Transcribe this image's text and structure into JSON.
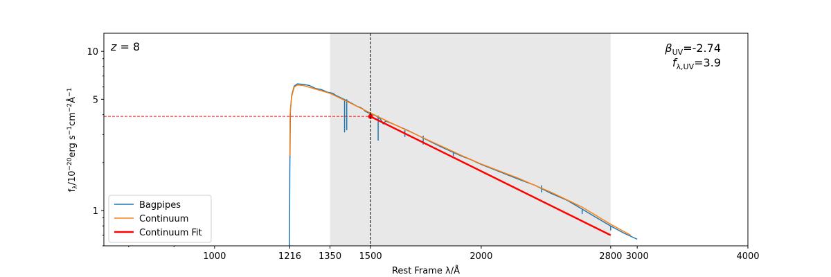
{
  "chart_data": {
    "type": "line",
    "title": "",
    "xlabel": "Rest Frame λ/Å",
    "ylabel": "f_λ/10^-20 erg s^-1 cm^-2 Å^-1",
    "x_scale": "log",
    "y_scale": "log",
    "xlim": [
      750,
      4000
    ],
    "ylim": [
      0.6,
      13
    ],
    "x_ticks": [
      1000,
      1216,
      1350,
      1500,
      2000,
      2800,
      3000,
      4000
    ],
    "y_ticks": [
      1,
      5,
      10
    ],
    "grid": false,
    "shaded_region": [
      1350,
      2800
    ],
    "vline": 1500,
    "hline": 3.9,
    "legend_position": "lower-left",
    "annotations": {
      "redshift": "z = 8",
      "beta": "β_UV=-2.74",
      "flux": "f_λ,UV=3.9"
    },
    "series": [
      {
        "name": "Bagpipes",
        "color": "#1f77b4",
        "points": [
          [
            1215,
            0.55
          ],
          [
            1216,
            1.8
          ],
          [
            1218,
            4.3
          ],
          [
            1222,
            5.3
          ],
          [
            1230,
            6.05
          ],
          [
            1240,
            6.25
          ],
          [
            1260,
            6.2
          ],
          [
            1280,
            6.1
          ],
          [
            1300,
            5.85
          ],
          [
            1320,
            5.75
          ],
          [
            1340,
            5.55
          ],
          [
            1350,
            5.5
          ],
          [
            1360,
            5.45
          ],
          [
            1370,
            5.3
          ],
          [
            1380,
            5.2
          ],
          [
            1400,
            5.0
          ],
          [
            1420,
            4.8
          ],
          [
            1430,
            4.7
          ],
          [
            1440,
            4.6
          ],
          [
            1450,
            4.5
          ],
          [
            1460,
            4.45
          ],
          [
            1470,
            4.35
          ],
          [
            1480,
            4.2
          ],
          [
            1500,
            4.05
          ],
          [
            1520,
            3.95
          ],
          [
            1540,
            3.75
          ],
          [
            1550,
            3.5
          ],
          [
            1560,
            3.65
          ],
          [
            1580,
            3.55
          ],
          [
            1600,
            3.45
          ],
          [
            1650,
            3.2
          ],
          [
            1700,
            2.95
          ],
          [
            1750,
            2.72
          ],
          [
            1800,
            2.52
          ],
          [
            1850,
            2.35
          ],
          [
            1900,
            2.2
          ],
          [
            1950,
            2.08
          ],
          [
            2000,
            1.95
          ],
          [
            2100,
            1.75
          ],
          [
            2200,
            1.58
          ],
          [
            2300,
            1.44
          ],
          [
            2400,
            1.28
          ],
          [
            2500,
            1.16
          ],
          [
            2600,
            1.02
          ],
          [
            2700,
            0.9
          ],
          [
            2800,
            0.8
          ],
          [
            2900,
            0.72
          ],
          [
            3000,
            0.66
          ]
        ]
      },
      {
        "name": "Continuum",
        "color": "#ff7f0e",
        "points": [
          [
            1216,
            2.2
          ],
          [
            1217,
            4.0
          ],
          [
            1222,
            5.2
          ],
          [
            1230,
            5.95
          ],
          [
            1240,
            6.15
          ],
          [
            1260,
            6.1
          ],
          [
            1300,
            5.8
          ],
          [
            1350,
            5.45
          ],
          [
            1400,
            4.95
          ],
          [
            1450,
            4.5
          ],
          [
            1500,
            4.1
          ],
          [
            1550,
            3.75
          ],
          [
            1600,
            3.45
          ],
          [
            1700,
            2.95
          ],
          [
            1800,
            2.55
          ],
          [
            1900,
            2.22
          ],
          [
            2000,
            1.96
          ],
          [
            2200,
            1.6
          ],
          [
            2400,
            1.3
          ],
          [
            2600,
            1.05
          ],
          [
            2800,
            0.82
          ],
          [
            2950,
            0.7
          ]
        ]
      },
      {
        "name": "Continuum Fit",
        "color": "#ff0000",
        "points": [
          [
            1500,
            3.9
          ],
          [
            2800,
            0.7
          ]
        ]
      }
    ],
    "absorption_lines": [
      [
        1402,
        3.1
      ],
      [
        1410,
        3.2
      ],
      [
        1530,
        2.75
      ],
      [
        1640,
        2.9
      ],
      [
        1720,
        2.6
      ],
      [
        1860,
        2.2
      ],
      [
        2340,
        1.3
      ],
      [
        2600,
        0.95
      ],
      [
        2800,
        0.75
      ]
    ]
  }
}
